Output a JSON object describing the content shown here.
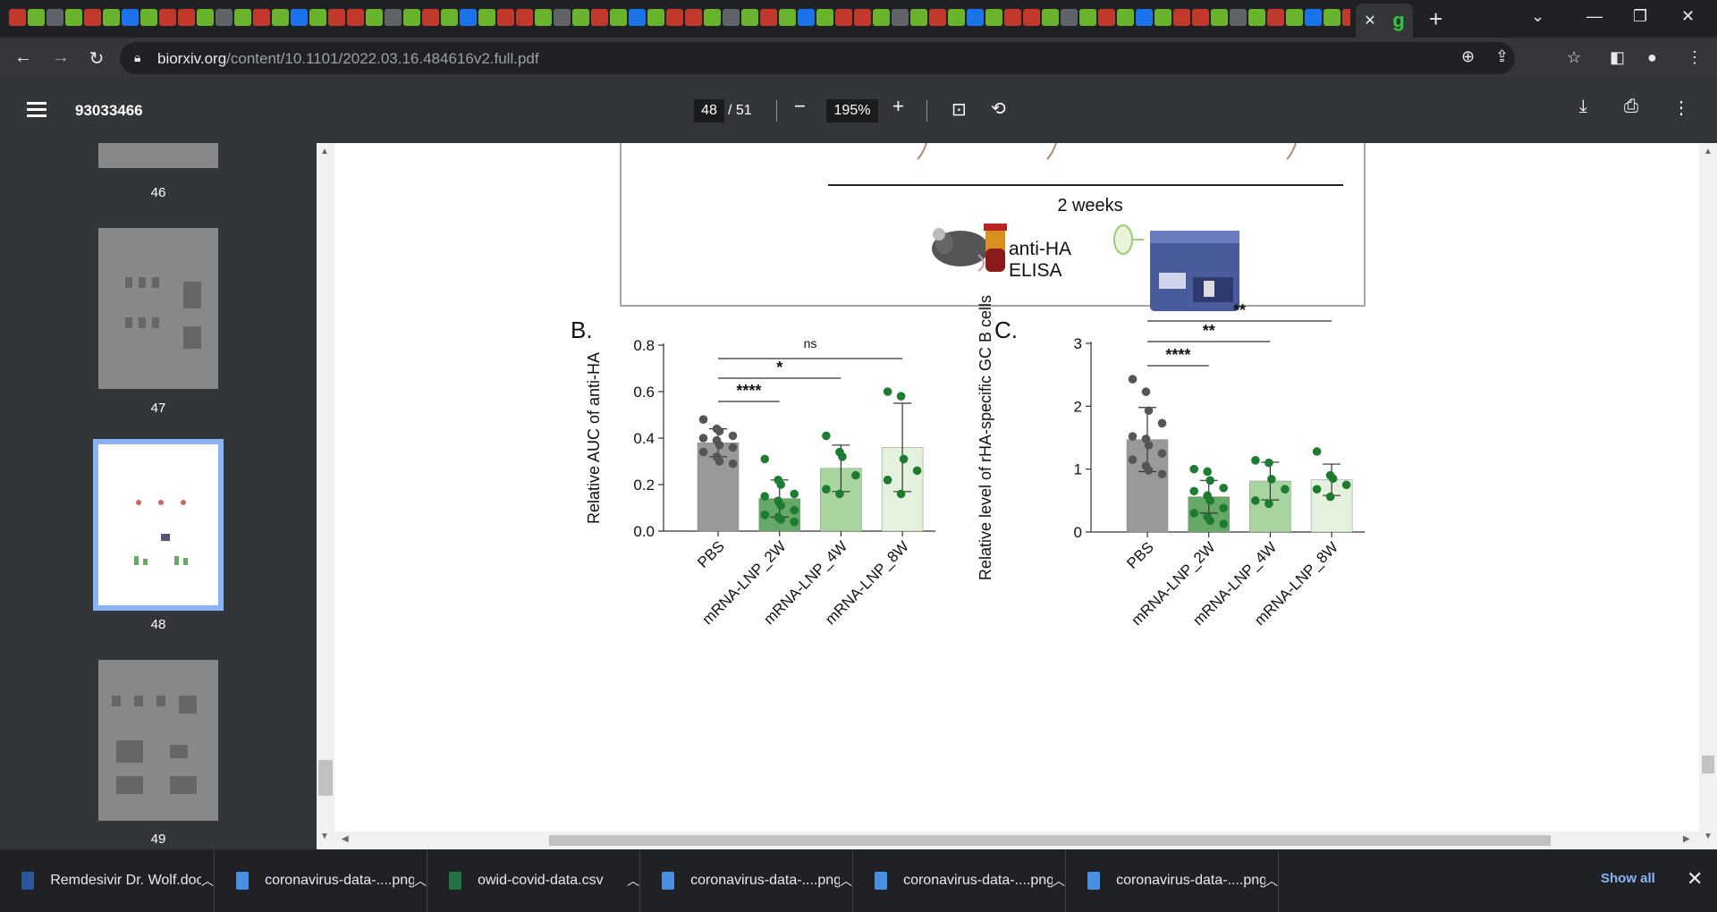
{
  "browser": {
    "tab_close": "✕",
    "new_tab": "+",
    "url_host": "biorxiv.org",
    "url_path": "/content/10.1101/2022.03.16.484616v2.full.pdf"
  },
  "pdf_toolbar": {
    "title": "93033466",
    "page_current": "48",
    "page_total": "/ 51",
    "zoom": "195%"
  },
  "sidebar": {
    "thumbnails": [
      {
        "num": "46"
      },
      {
        "num": "47"
      },
      {
        "num": "48",
        "active": true
      },
      {
        "num": "49"
      }
    ]
  },
  "figure": {
    "timeline_label": "2 weeks",
    "assay_label_1": "anti-HA",
    "assay_label_2": "ELISA",
    "panel_b_letter": "B.",
    "panel_c_letter": "C."
  },
  "chart_data": [
    {
      "type": "bar",
      "panel": "B.",
      "ylabel": "Relative AUC of anti-HA",
      "ylim": [
        0,
        0.8
      ],
      "yticks": [
        "0.0",
        "0.2",
        "0.4",
        "0.6",
        "0.8"
      ],
      "categories": [
        "PBS",
        "mRNA-LNP_2W",
        "mRNA-LNP_4W",
        "mRNA-LNP_8W"
      ],
      "values": [
        0.38,
        0.14,
        0.27,
        0.36
      ],
      "errors": [
        0.06,
        0.08,
        0.1,
        0.19
      ],
      "points": [
        [
          0.48,
          0.44,
          0.43,
          0.41,
          0.4,
          0.39,
          0.37,
          0.36,
          0.34,
          0.32,
          0.3,
          0.29
        ],
        [
          0.31,
          0.22,
          0.2,
          0.16,
          0.15,
          0.13,
          0.11,
          0.09,
          0.07,
          0.06,
          0.05,
          0.04
        ],
        [
          0.41,
          0.34,
          0.32,
          0.24,
          0.18,
          0.16
        ],
        [
          0.6,
          0.58,
          0.31,
          0.26,
          0.22,
          0.16
        ]
      ],
      "significance": [
        {
          "from": 0,
          "to": 1,
          "label": "****"
        },
        {
          "from": 0,
          "to": 2,
          "label": "*"
        },
        {
          "from": 0,
          "to": 3,
          "label": "ns"
        }
      ],
      "colors": [
        "#999999",
        "#66a866",
        "#a8d4a0",
        "#e3f1dd"
      ],
      "point_colors": [
        "#555555",
        "#1e7b32",
        "#1e7b32",
        "#1e7b32"
      ]
    },
    {
      "type": "bar",
      "panel": "C.",
      "ylabel": "Relative level of rHA-specific GC B cells",
      "ylim": [
        0,
        3
      ],
      "yticks": [
        "0",
        "1",
        "2",
        "3"
      ],
      "categories": [
        "PBS",
        "mRNA-LNP_2W",
        "mRNA-LNP_4W",
        "mRNA-LNP_8W"
      ],
      "values": [
        1.47,
        0.56,
        0.81,
        0.83
      ],
      "errors": [
        0.51,
        0.26,
        0.3,
        0.25
      ],
      "points": [
        [
          2.43,
          2.23,
          1.93,
          1.73,
          1.52,
          1.48,
          1.38,
          1.25,
          1.15,
          1.05,
          0.98,
          0.92
        ],
        [
          1.0,
          0.96,
          0.82,
          0.7,
          0.65,
          0.58,
          0.5,
          0.38,
          0.3,
          0.24,
          0.18,
          0.13
        ],
        [
          1.14,
          1.1,
          0.84,
          0.68,
          0.5,
          0.45
        ],
        [
          1.28,
          0.9,
          0.85,
          0.75,
          0.68,
          0.56
        ]
      ],
      "significance": [
        {
          "from": 0,
          "to": 1,
          "label": "****"
        },
        {
          "from": 0,
          "to": 2,
          "label": "**"
        },
        {
          "from": 0,
          "to": 3,
          "label": "**"
        }
      ],
      "colors": [
        "#999999",
        "#66a866",
        "#a8d4a0",
        "#e3f1dd"
      ],
      "point_colors": [
        "#555555",
        "#1e7b32",
        "#1e7b32",
        "#1e7b32"
      ]
    }
  ],
  "downloads": {
    "items": [
      {
        "name": "Remdesivir Dr. Wolf.doc",
        "type": "word",
        "color": "#2b579a"
      },
      {
        "name": "coronavirus-data-....png",
        "type": "image",
        "color": "#4a90e2"
      },
      {
        "name": "owid-covid-data.csv",
        "type": "excel",
        "color": "#217346"
      },
      {
        "name": "coronavirus-data-....png",
        "type": "image",
        "color": "#4a90e2"
      },
      {
        "name": "coronavirus-data-....png",
        "type": "image",
        "color": "#4a90e2"
      },
      {
        "name": "coronavirus-data-....png",
        "type": "image",
        "color": "#4a90e2"
      }
    ],
    "show_all": "Show all"
  }
}
